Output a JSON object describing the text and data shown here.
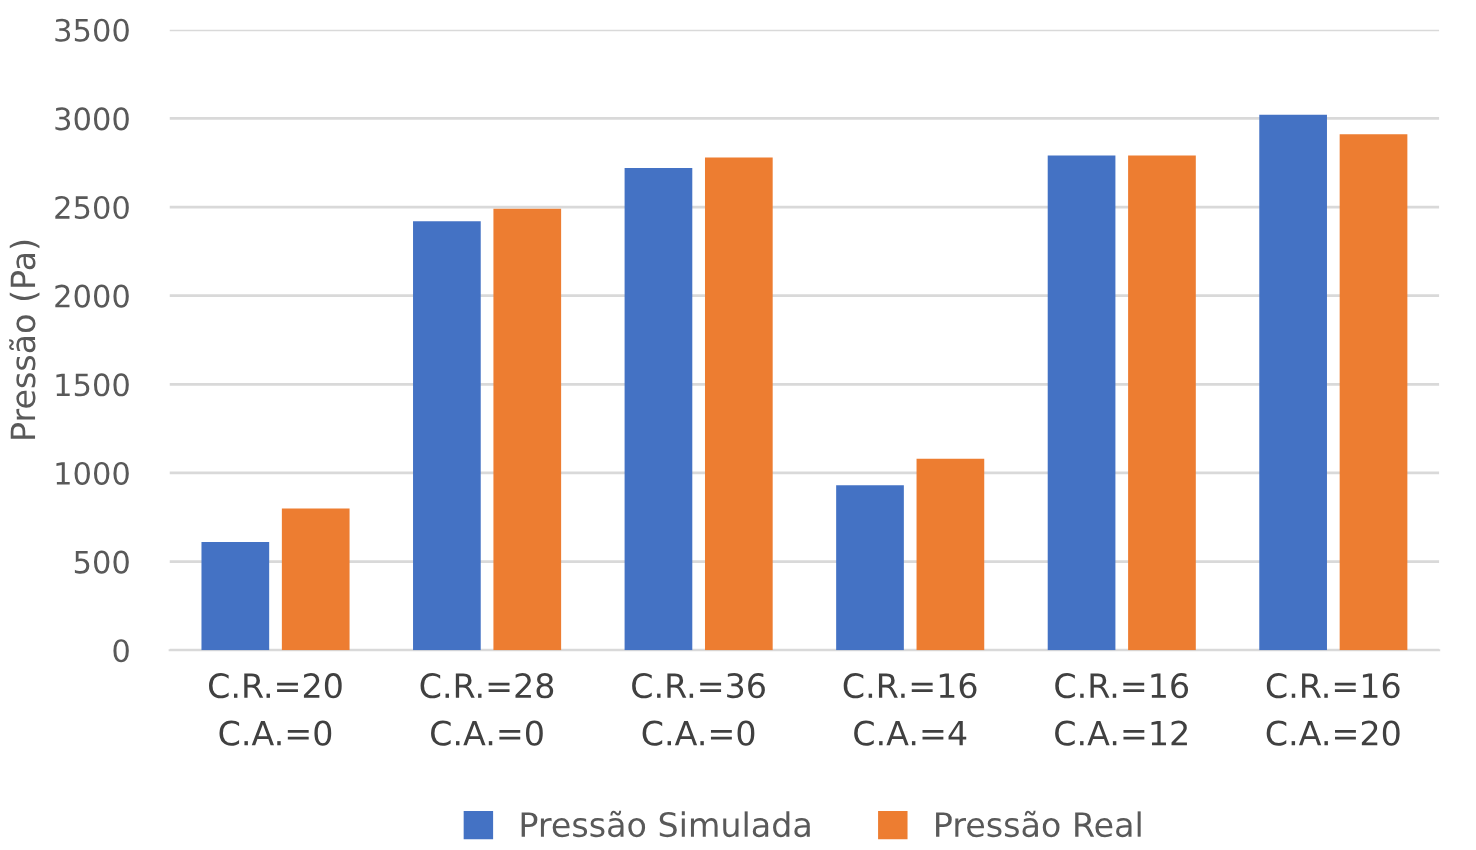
{
  "chart_data": {
    "type": "bar",
    "ylabel": "Pressão (Pa)",
    "categories": [
      "C.R.=20\nC.A.=0",
      "C.R.=28\nC.A.=0",
      "C.R.=36\nC.A.=0",
      "C.R.=16\nC.A.=4",
      "C.R.=16\nC.A.=12",
      "C.R.=16\nC.A.=20"
    ],
    "series": [
      {
        "name": "Pressão Simulada",
        "color": "#4472c4",
        "values": [
          610,
          2420,
          2720,
          930,
          2790,
          3020
        ]
      },
      {
        "name": "Pressão Real",
        "color": "#ed7d31",
        "values": [
          800,
          2490,
          2780,
          1080,
          2790,
          2910
        ]
      }
    ],
    "ylim": [
      0,
      3500
    ],
    "yticks": [
      0,
      500,
      1000,
      1500,
      2000,
      2500,
      3000,
      3500
    ],
    "grid": "y",
    "legend": "bottom"
  }
}
